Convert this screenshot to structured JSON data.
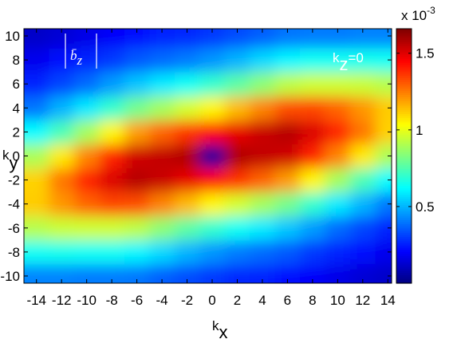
{
  "chart_data": {
    "type": "heatmap",
    "colormap": "jet",
    "x": [
      -14,
      -12,
      -10,
      -8,
      -6,
      -4,
      -2,
      0,
      2,
      4,
      6,
      8,
      10,
      12,
      14
    ],
    "y": [
      -10,
      -8,
      -6,
      -4,
      -2,
      0,
      2,
      4,
      6,
      8,
      10
    ],
    "z": [
      [
        0.42,
        0.42,
        0.41,
        0.41,
        0.4,
        0.36,
        0.33,
        0.3,
        0.27,
        0.26,
        0.23,
        0.2,
        0.17,
        0.14,
        0.12
      ],
      [
        0.64,
        0.65,
        0.64,
        0.64,
        0.61,
        0.56,
        0.5,
        0.45,
        0.41,
        0.38,
        0.35,
        0.3,
        0.26,
        0.22,
        0.18
      ],
      [
        0.92,
        0.95,
        0.96,
        0.96,
        0.93,
        0.85,
        0.77,
        0.7,
        0.64,
        0.59,
        0.53,
        0.46,
        0.38,
        0.32,
        0.26
      ],
      [
        1.12,
        1.21,
        1.29,
        1.34,
        1.33,
        1.24,
        1.15,
        1.05,
        0.97,
        0.89,
        0.81,
        0.7,
        0.59,
        0.5,
        0.4
      ],
      [
        1.11,
        1.26,
        1.4,
        1.51,
        1.57,
        1.54,
        1.49,
        1.45,
        1.37,
        1.29,
        1.2,
        1.05,
        0.89,
        0.74,
        0.62
      ],
      [
        0.9,
        1.07,
        1.24,
        1.4,
        1.53,
        1.55,
        1.58,
        0.05,
        1.58,
        1.55,
        1.53,
        1.4,
        1.24,
        1.07,
        0.9
      ],
      [
        0.62,
        0.74,
        0.89,
        1.05,
        1.2,
        1.29,
        1.37,
        1.45,
        1.49,
        1.54,
        1.57,
        1.51,
        1.4,
        1.26,
        1.11
      ],
      [
        0.4,
        0.5,
        0.59,
        0.7,
        0.81,
        0.89,
        0.97,
        1.05,
        1.15,
        1.24,
        1.33,
        1.34,
        1.29,
        1.21,
        1.12
      ],
      [
        0.26,
        0.32,
        0.38,
        0.46,
        0.53,
        0.59,
        0.64,
        0.7,
        0.77,
        0.85,
        0.93,
        0.96,
        0.96,
        0.95,
        0.92
      ],
      [
        0.18,
        0.22,
        0.26,
        0.3,
        0.35,
        0.38,
        0.41,
        0.45,
        0.5,
        0.56,
        0.61,
        0.64,
        0.64,
        0.65,
        0.64
      ],
      [
        0.12,
        0.14,
        0.17,
        0.2,
        0.23,
        0.26,
        0.27,
        0.3,
        0.33,
        0.36,
        0.4,
        0.41,
        0.41,
        0.42,
        0.42
      ]
    ],
    "xlim": [
      -15,
      14.3
    ],
    "ylim": [
      -10.6,
      10.6
    ],
    "xticks": [
      -14,
      -12,
      -10,
      -8,
      -6,
      -4,
      -2,
      0,
      2,
      4,
      6,
      8,
      10,
      12,
      14
    ],
    "yticks": [
      -10,
      -8,
      -6,
      -4,
      -2,
      0,
      2,
      4,
      6,
      8,
      10
    ],
    "clim": [
      0,
      1.66
    ],
    "cticks": [
      0.5,
      1,
      1.5
    ],
    "colorbar_scale": {
      "base": "x 10",
      "exp": "-3"
    },
    "xlabel": {
      "base": "k",
      "sub": "x"
    },
    "ylabel": {
      "base": "k",
      "sub": "y"
    },
    "annotations": [
      {
        "base": "b̄",
        "sub": "z",
        "color": "#ffffff"
      },
      {
        "base": "k",
        "sub": "z",
        "rest": "=0",
        "color": "#ffffff"
      }
    ]
  }
}
